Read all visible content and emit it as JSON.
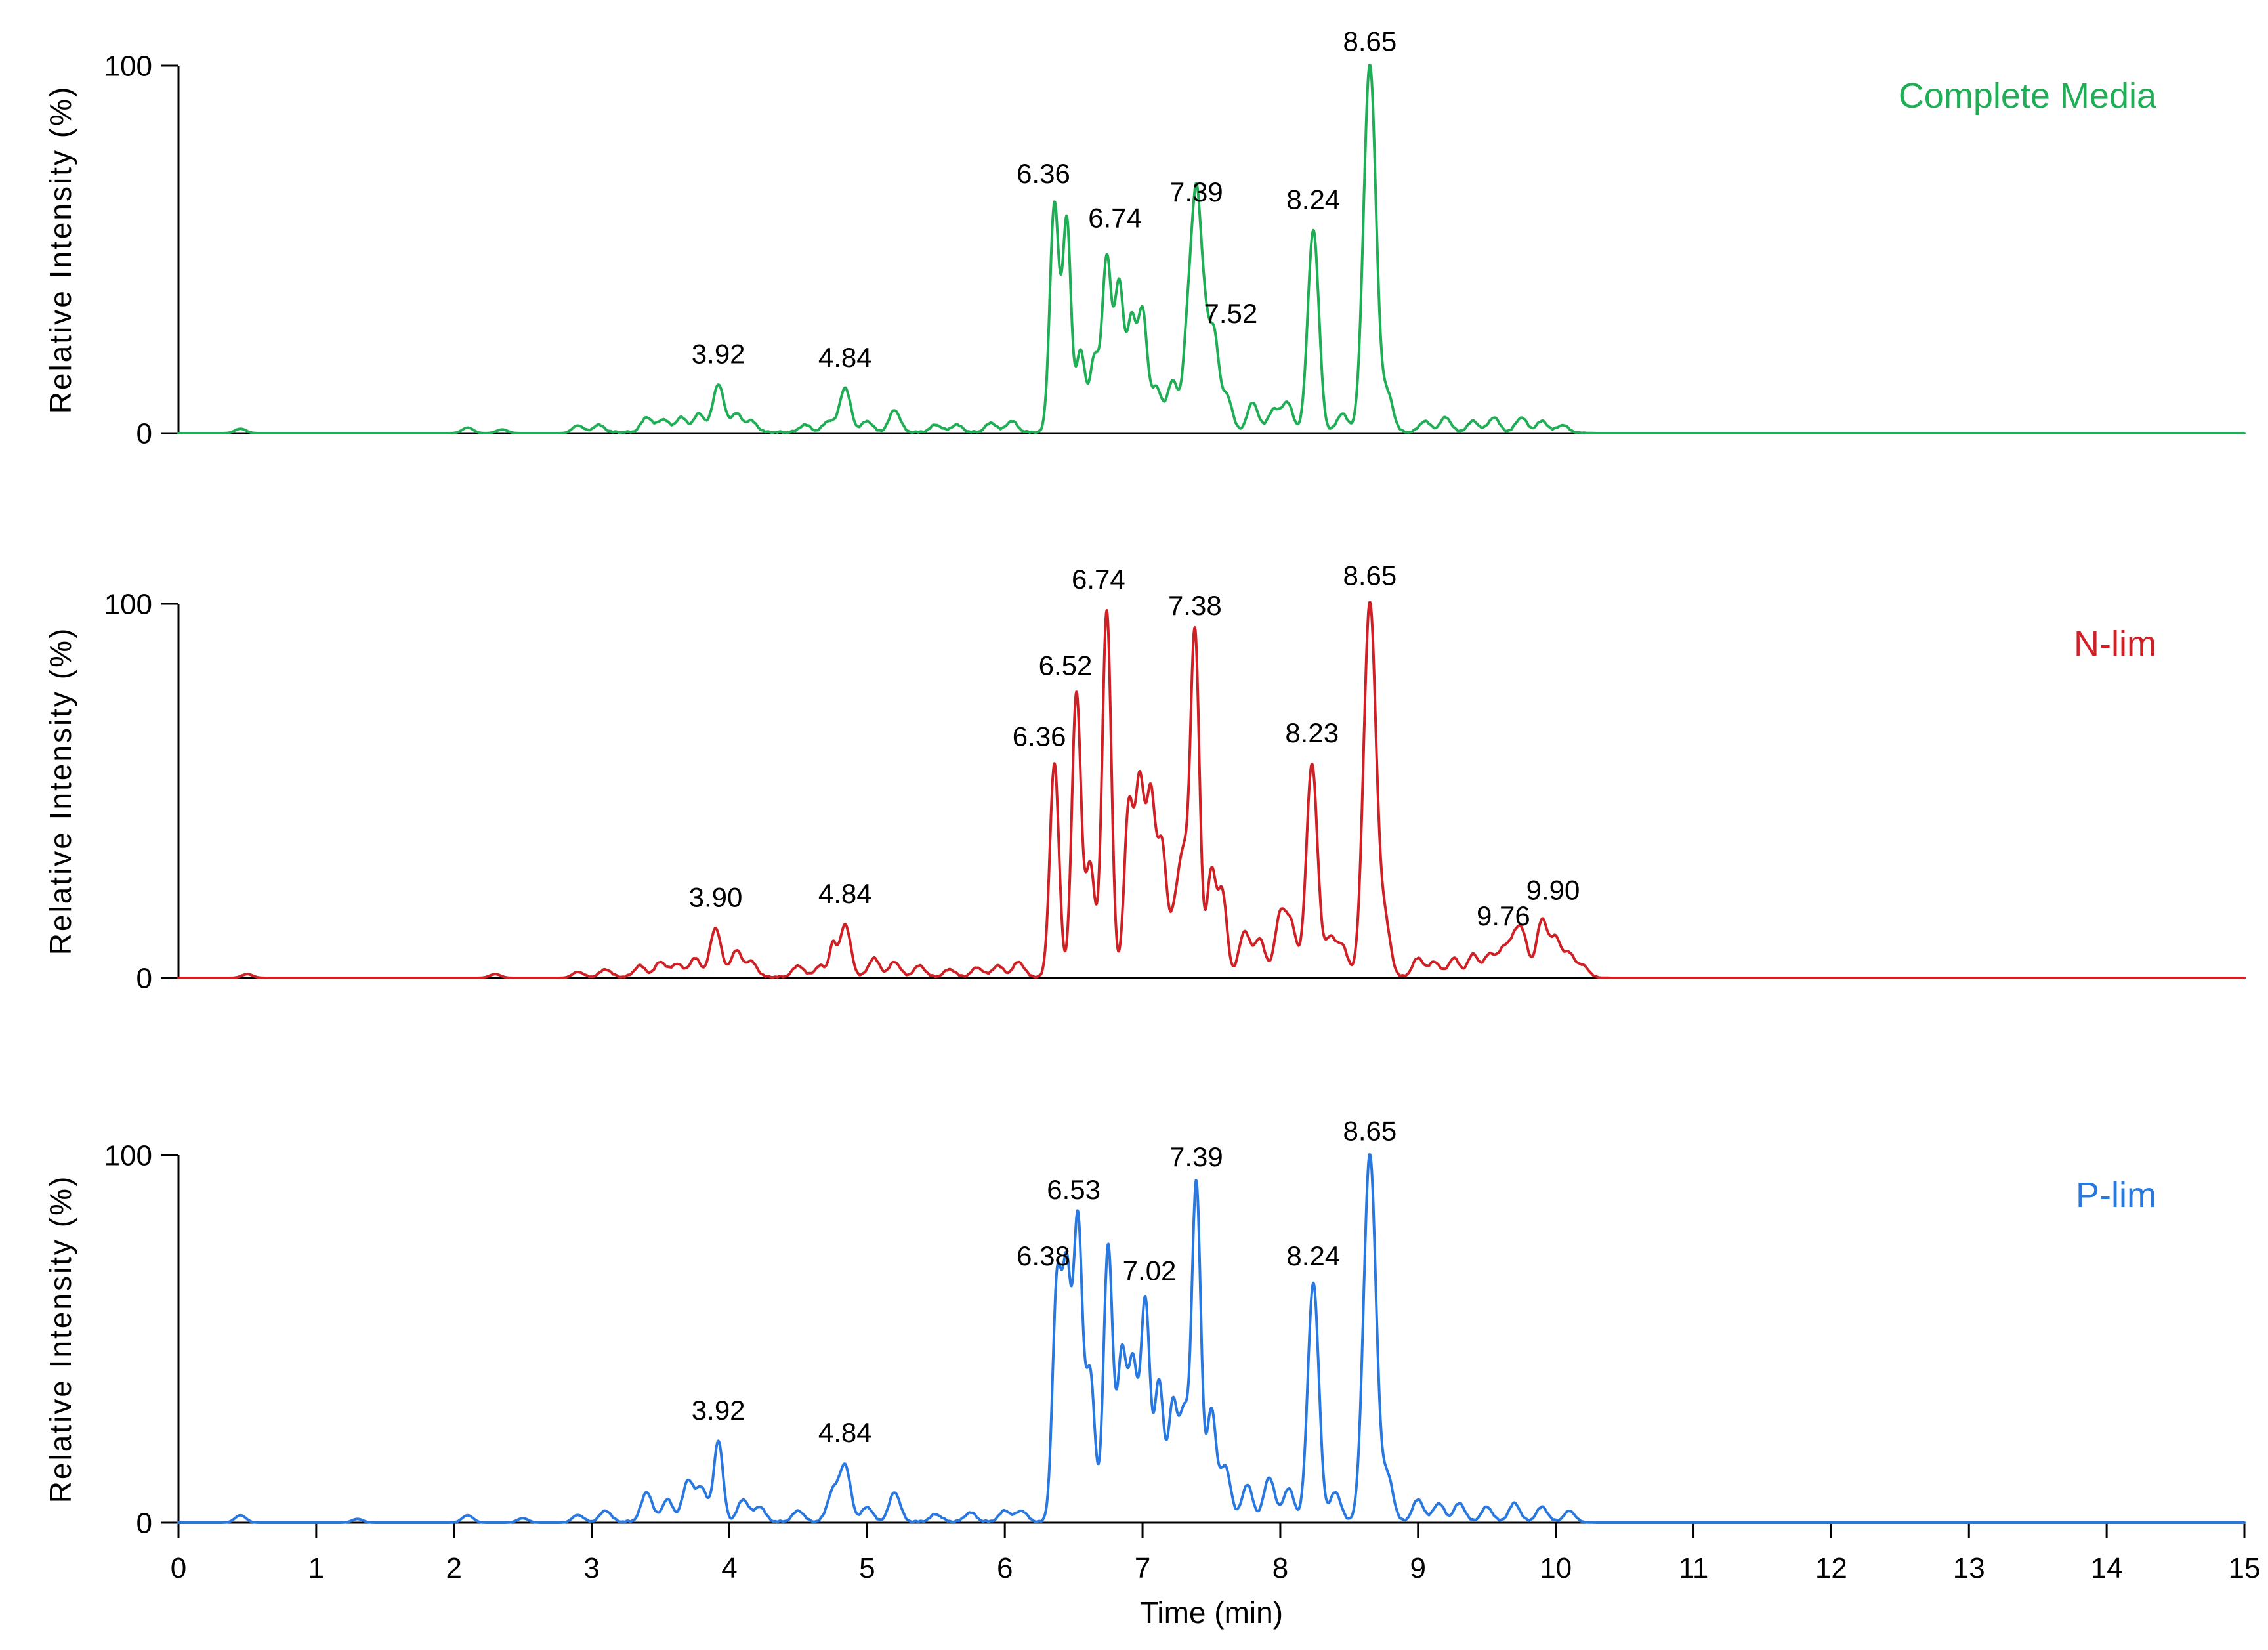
{
  "figure": {
    "ylabel": "Relative Intensity (%)",
    "xlabel": "Time (min)",
    "y_tick_labels": [
      "100",
      "0"
    ],
    "x_tick_labels": [
      "0",
      "1",
      "2",
      "3",
      "4",
      "5",
      "6",
      "7",
      "8",
      "9",
      "10",
      "11",
      "12",
      "13",
      "14",
      "15"
    ],
    "axis_color": "#000000",
    "background": "#ffffff"
  },
  "chart_data": [
    {
      "type": "line",
      "title": "Complete Media",
      "color": "#1fae55",
      "xlabel": "Time (min)",
      "ylabel": "Relative Intensity (%)",
      "xlim": [
        0,
        15
      ],
      "ylim": [
        0,
        100
      ],
      "labeled_peaks": [
        [
          3.92,
          13
        ],
        [
          4.84,
          12
        ],
        [
          6.36,
          62
        ],
        [
          6.74,
          47
        ],
        [
          7.39,
          57
        ],
        [
          7.52,
          25
        ],
        [
          8.24,
          55,
          0.04
        ],
        [
          8.65,
          100,
          0.045
        ]
      ],
      "minor_peaks": [
        [
          0.45,
          1.2
        ],
        [
          2.1,
          1.5
        ],
        [
          2.35,
          1.0
        ],
        [
          2.9,
          2.0
        ],
        [
          3.05,
          2.0
        ],
        [
          3.4,
          4
        ],
        [
          3.52,
          3.5
        ],
        [
          3.65,
          4
        ],
        [
          3.78,
          5
        ],
        [
          4.05,
          5
        ],
        [
          4.16,
          3
        ],
        [
          4.55,
          2
        ],
        [
          4.72,
          3
        ],
        [
          5.0,
          3
        ],
        [
          5.2,
          6
        ],
        [
          5.5,
          2
        ],
        [
          5.65,
          2
        ],
        [
          5.9,
          2.5
        ],
        [
          6.05,
          3
        ],
        [
          6.45,
          57,
          0.03
        ],
        [
          6.55,
          22
        ],
        [
          6.65,
          20
        ],
        [
          6.83,
          40
        ],
        [
          6.92,
          30
        ],
        [
          7.0,
          32
        ],
        [
          7.1,
          12
        ],
        [
          7.22,
          14
        ],
        [
          7.33,
          28
        ],
        [
          7.45,
          27
        ],
        [
          7.61,
          10
        ],
        [
          7.8,
          8
        ],
        [
          7.95,
          6
        ],
        [
          8.05,
          8
        ],
        [
          8.45,
          5
        ],
        [
          8.78,
          10
        ],
        [
          9.05,
          3
        ],
        [
          9.2,
          4
        ],
        [
          9.4,
          3
        ],
        [
          9.55,
          4
        ],
        [
          9.75,
          4
        ],
        [
          9.9,
          3
        ],
        [
          10.05,
          2
        ]
      ],
      "peak_labels": [
        {
          "text": "3.92",
          "x": 3.92,
          "y": 19
        },
        {
          "text": "4.84",
          "x": 4.84,
          "y": 18
        },
        {
          "text": "6.36",
          "x": 6.28,
          "y": 68
        },
        {
          "text": "6.74",
          "x": 6.8,
          "y": 56
        },
        {
          "text": "7.39",
          "x": 7.39,
          "y": 63
        },
        {
          "text": "7.52",
          "x": 7.64,
          "y": 30
        },
        {
          "text": "8.24",
          "x": 8.24,
          "y": 61
        },
        {
          "text": "8.65",
          "x": 8.65,
          "y": 104
        }
      ],
      "noise": {
        "amp": 0.5,
        "range": [
          2.8,
          10.3
        ]
      }
    },
    {
      "type": "line",
      "title": "N-lim",
      "color": "#cf2026",
      "xlabel": "Time (min)",
      "ylabel": "Relative Intensity (%)",
      "xlim": [
        0,
        15
      ],
      "ylim": [
        0,
        100
      ],
      "labeled_peaks": [
        [
          3.9,
          13
        ],
        [
          4.84,
          14
        ],
        [
          6.36,
          57
        ],
        [
          6.52,
          76
        ],
        [
          6.74,
          98
        ],
        [
          7.38,
          92
        ],
        [
          8.23,
          57,
          0.04
        ],
        [
          8.65,
          100,
          0.045
        ],
        [
          9.76,
          10
        ],
        [
          9.9,
          15
        ]
      ],
      "minor_peaks": [
        [
          0.5,
          1
        ],
        [
          2.3,
          1
        ],
        [
          2.9,
          1.5
        ],
        [
          3.1,
          2
        ],
        [
          3.35,
          3
        ],
        [
          3.5,
          4
        ],
        [
          3.62,
          3.5
        ],
        [
          3.75,
          5
        ],
        [
          4.05,
          7
        ],
        [
          4.16,
          4
        ],
        [
          4.5,
          3
        ],
        [
          4.66,
          3
        ],
        [
          4.75,
          8,
          0.025
        ],
        [
          5.05,
          5
        ],
        [
          5.2,
          4
        ],
        [
          5.38,
          3
        ],
        [
          5.6,
          2
        ],
        [
          5.8,
          2.5
        ],
        [
          5.95,
          3
        ],
        [
          6.1,
          4
        ],
        [
          6.62,
          30
        ],
        [
          6.9,
          45
        ],
        [
          6.98,
          50
        ],
        [
          7.06,
          47
        ],
        [
          7.14,
          34
        ],
        [
          7.24,
          18
        ],
        [
          7.3,
          25
        ],
        [
          7.5,
          28
        ],
        [
          7.58,
          22
        ],
        [
          7.74,
          12
        ],
        [
          7.85,
          10
        ],
        [
          8.0,
          16
        ],
        [
          8.08,
          13
        ],
        [
          8.36,
          10
        ],
        [
          8.45,
          8
        ],
        [
          8.76,
          14
        ],
        [
          9.0,
          5
        ],
        [
          9.12,
          4
        ],
        [
          9.26,
          5
        ],
        [
          9.4,
          6
        ],
        [
          9.52,
          6
        ],
        [
          9.62,
          7
        ],
        [
          9.7,
          8
        ],
        [
          10.0,
          10
        ],
        [
          10.1,
          6
        ],
        [
          10.2,
          3
        ]
      ],
      "peak_labels": [
        {
          "text": "3.90",
          "x": 3.9,
          "y": 19
        },
        {
          "text": "4.84",
          "x": 4.84,
          "y": 20
        },
        {
          "text": "6.36",
          "x": 6.25,
          "y": 62
        },
        {
          "text": "6.52",
          "x": 6.44,
          "y": 81
        },
        {
          "text": "6.74",
          "x": 6.68,
          "y": 104
        },
        {
          "text": "7.38",
          "x": 7.38,
          "y": 97
        },
        {
          "text": "8.23",
          "x": 8.23,
          "y": 63
        },
        {
          "text": "8.65",
          "x": 8.65,
          "y": 105
        },
        {
          "text": "9.76",
          "x": 9.62,
          "y": 14
        },
        {
          "text": "9.90",
          "x": 9.98,
          "y": 21
        }
      ],
      "noise": {
        "amp": 0.5,
        "range": [
          2.8,
          10.4
        ]
      }
    },
    {
      "type": "line",
      "title": "P-lim",
      "color": "#2878e0",
      "xlabel": "Time (min)",
      "ylabel": "Relative Intensity (%)",
      "xlim": [
        0,
        15
      ],
      "ylim": [
        0,
        100
      ],
      "labeled_peaks": [
        [
          3.92,
          22
        ],
        [
          4.84,
          15
        ],
        [
          6.38,
          65
        ],
        [
          6.53,
          82
        ],
        [
          7.02,
          60
        ],
        [
          7.39,
          92
        ],
        [
          8.24,
          65,
          0.04
        ],
        [
          8.65,
          100,
          0.045
        ]
      ],
      "minor_peaks": [
        [
          0.45,
          2
        ],
        [
          1.3,
          1
        ],
        [
          2.1,
          2
        ],
        [
          2.5,
          1.2
        ],
        [
          2.9,
          2
        ],
        [
          3.1,
          3
        ],
        [
          3.4,
          8
        ],
        [
          3.55,
          6
        ],
        [
          3.7,
          11
        ],
        [
          3.8,
          9
        ],
        [
          4.1,
          6
        ],
        [
          4.22,
          4
        ],
        [
          4.5,
          3
        ],
        [
          4.75,
          8
        ],
        [
          5.0,
          4
        ],
        [
          5.2,
          8
        ],
        [
          5.5,
          2
        ],
        [
          5.75,
          2.5
        ],
        [
          6.0,
          3
        ],
        [
          6.12,
          3
        ],
        [
          6.45,
          62,
          0.03
        ],
        [
          6.62,
          40
        ],
        [
          6.75,
          75
        ],
        [
          6.85,
          45
        ],
        [
          6.93,
          42
        ],
        [
          7.12,
          38
        ],
        [
          7.22,
          32
        ],
        [
          7.3,
          28
        ],
        [
          7.5,
          30
        ],
        [
          7.6,
          15
        ],
        [
          7.76,
          10
        ],
        [
          7.92,
          12
        ],
        [
          8.06,
          9
        ],
        [
          8.4,
          8
        ],
        [
          8.78,
          12
        ],
        [
          9.0,
          6
        ],
        [
          9.15,
          5
        ],
        [
          9.3,
          5
        ],
        [
          9.5,
          4
        ],
        [
          9.7,
          5
        ],
        [
          9.9,
          4
        ],
        [
          10.1,
          3
        ]
      ],
      "peak_labels": [
        {
          "text": "3.92",
          "x": 3.92,
          "y": 28
        },
        {
          "text": "4.84",
          "x": 4.84,
          "y": 22
        },
        {
          "text": "6.38",
          "x": 6.28,
          "y": 70
        },
        {
          "text": "6.53",
          "x": 6.5,
          "y": 88
        },
        {
          "text": "7.02",
          "x": 7.05,
          "y": 66
        },
        {
          "text": "7.39",
          "x": 7.39,
          "y": 97
        },
        {
          "text": "8.24",
          "x": 8.24,
          "y": 70
        },
        {
          "text": "8.65",
          "x": 8.65,
          "y": 104
        }
      ],
      "noise": {
        "amp": 0.5,
        "range": [
          2.8,
          10.3
        ]
      }
    }
  ]
}
